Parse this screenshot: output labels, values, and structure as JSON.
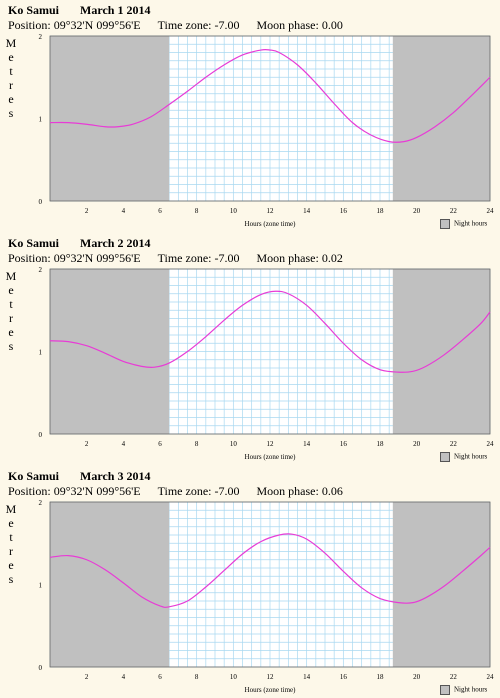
{
  "colors": {
    "night": "#c0c0c0",
    "grid": "#a9d8f0",
    "curve": "#e83bd6",
    "background": "#fdf8e9",
    "plot": "#ffffff"
  },
  "charts": [
    {
      "location": "Ko Samui",
      "date": "March 1 2014",
      "position_label": "Position:",
      "position": "09°32'N 099°56'E",
      "timezone_label": "Time zone:",
      "timezone": "-7.00",
      "moonphase_label": "Moon phase:",
      "moonphase": "0.00",
      "ylabel": "Metres",
      "xlabel": "Hours (zone time)",
      "legend": "Night hours"
    },
    {
      "location": "Ko Samui",
      "date": "March 2 2014",
      "position_label": "Position:",
      "position": "09°32'N 099°56'E",
      "timezone_label": "Time zone:",
      "timezone": "-7.00",
      "moonphase_label": "Moon phase:",
      "moonphase": "0.02",
      "ylabel": "Metres",
      "xlabel": "Hours (zone time)",
      "legend": "Night hours"
    },
    {
      "location": "Ko Samui",
      "date": "March 3 2014",
      "position_label": "Position:",
      "position": "09°32'N 099°56'E",
      "timezone_label": "Time zone:",
      "timezone": "-7.00",
      "moonphase_label": "Moon phase:",
      "moonphase": "0.06",
      "ylabel": "Metres",
      "xlabel": "Hours (zone time)",
      "legend": "Night hours"
    }
  ],
  "chart_data": [
    {
      "type": "line",
      "title": "Ko Samui March 1 2014",
      "xlabel": "Hours (zone time)",
      "ylabel": "Metres",
      "xlim": [
        0,
        24
      ],
      "ylim": [
        0,
        2
      ],
      "xticks": [
        2,
        4,
        6,
        8,
        10,
        12,
        14,
        16,
        18,
        20,
        22,
        24
      ],
      "yticks": [
        0,
        1,
        2
      ],
      "grid": true,
      "night_hours": [
        [
          0,
          6.5
        ],
        [
          18.7,
          24
        ]
      ],
      "series": [
        {
          "x": [
            0,
            1,
            2,
            3,
            3.7,
            4.5,
            5.5,
            6.5,
            7.5,
            8.5,
            9.5,
            10.5,
            11.5,
            12,
            12.5,
            13.5,
            14.5,
            15.5,
            16.5,
            17.5,
            18.5,
            19.3,
            20,
            21,
            22,
            23,
            24
          ],
          "y": [
            0.95,
            0.95,
            0.93,
            0.9,
            0.9,
            0.93,
            1.02,
            1.17,
            1.33,
            1.5,
            1.65,
            1.77,
            1.83,
            1.83,
            1.8,
            1.65,
            1.43,
            1.18,
            0.95,
            0.8,
            0.72,
            0.72,
            0.77,
            0.9,
            1.07,
            1.28,
            1.5
          ]
        }
      ]
    },
    {
      "type": "line",
      "title": "Ko Samui March 2 2014",
      "xlabel": "Hours (zone time)",
      "ylabel": "Metres",
      "xlim": [
        0,
        24
      ],
      "ylim": [
        0,
        2
      ],
      "xticks": [
        2,
        4,
        6,
        8,
        10,
        12,
        14,
        16,
        18,
        20,
        22,
        24
      ],
      "yticks": [
        0,
        1,
        2
      ],
      "grid": true,
      "night_hours": [
        [
          0,
          6.5
        ],
        [
          18.7,
          24
        ]
      ],
      "series": [
        {
          "x": [
            0,
            1,
            2,
            3,
            4,
            5,
            5.7,
            6.5,
            7.5,
            8.5,
            9.5,
            10.5,
            11.5,
            12.3,
            13,
            14,
            15,
            16,
            17,
            18,
            19,
            19.8,
            20.5,
            21.5,
            22.5,
            23.5,
            24
          ],
          "y": [
            1.13,
            1.12,
            1.07,
            0.98,
            0.88,
            0.82,
            0.81,
            0.86,
            1.0,
            1.18,
            1.38,
            1.56,
            1.69,
            1.73,
            1.7,
            1.56,
            1.34,
            1.1,
            0.9,
            0.78,
            0.75,
            0.76,
            0.82,
            0.96,
            1.14,
            1.34,
            1.48
          ]
        }
      ]
    },
    {
      "type": "line",
      "title": "Ko Samui March 3 2014",
      "xlabel": "Hours (zone time)",
      "ylabel": "Metres",
      "xlim": [
        0,
        24
      ],
      "ylim": [
        0,
        2
      ],
      "xticks": [
        2,
        4,
        6,
        8,
        10,
        12,
        14,
        16,
        18,
        20,
        22,
        24
      ],
      "yticks": [
        0,
        1,
        2
      ],
      "grid": true,
      "night_hours": [
        [
          0,
          6.5
        ],
        [
          18.7,
          24
        ]
      ],
      "series": [
        {
          "x": [
            0,
            1,
            2,
            3,
            4,
            5,
            6,
            6.5,
            7.5,
            8.5,
            9.5,
            10.5,
            11.5,
            12.5,
            13.2,
            14,
            15,
            16,
            17,
            18,
            19,
            19.8,
            20.5,
            21.5,
            22.5,
            23.5,
            24
          ],
          "y": [
            1.33,
            1.35,
            1.3,
            1.18,
            1.02,
            0.85,
            0.74,
            0.73,
            0.8,
            0.97,
            1.17,
            1.37,
            1.52,
            1.6,
            1.61,
            1.55,
            1.38,
            1.16,
            0.96,
            0.83,
            0.78,
            0.78,
            0.84,
            0.98,
            1.16,
            1.35,
            1.45
          ]
        }
      ]
    }
  ]
}
